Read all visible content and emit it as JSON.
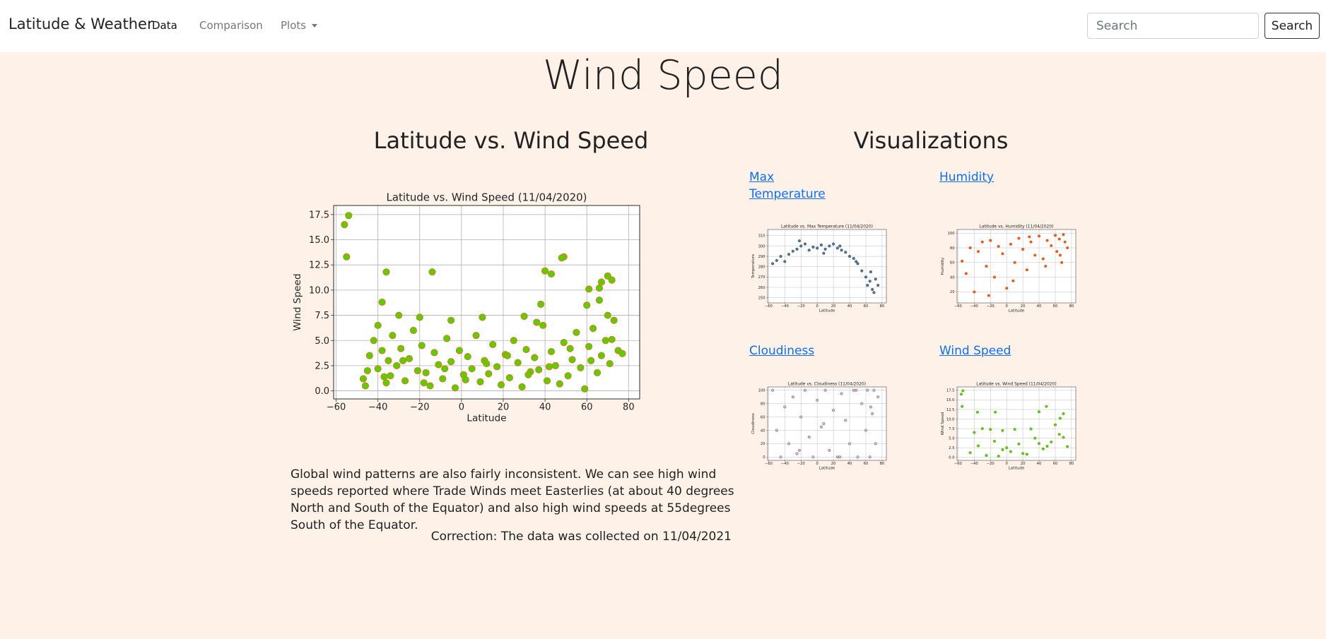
{
  "navbar": {
    "brand": "Latitude & Weather",
    "links": [
      "Data",
      "Comparison",
      "Plots"
    ],
    "search_placeholder": "Search",
    "search_button": "Search"
  },
  "page_title": "Wind Speed",
  "left": {
    "heading": "Latitude vs. Wind Speed",
    "chart_data": {
      "type": "scatter",
      "title": "Latitude vs. Wind Speed (11/04/2020)",
      "xlabel": "Latitude",
      "ylabel": "Wind Speed",
      "color": "#58d000",
      "edge_color": "#e8751a",
      "grid": true,
      "xlim": [
        -61.2,
        85.3
      ],
      "ylim": [
        -0.8,
        18.4
      ],
      "xticks": [
        {
          "value": -60,
          "label": "−60"
        },
        {
          "value": -40,
          "label": "−40"
        },
        {
          "value": -20,
          "label": "−20"
        },
        0,
        20,
        40,
        60,
        80
      ],
      "yticks": [
        {
          "value": 0,
          "label": "0.0"
        },
        2.5,
        {
          "value": 5,
          "label": "5.0"
        },
        7.5,
        {
          "value": 10,
          "label": "10.0"
        },
        12.5,
        {
          "value": 15,
          "label": "15.0"
        },
        17.5
      ],
      "x": [
        -56,
        -54,
        -55,
        -36,
        -14,
        49,
        48,
        40,
        43,
        70,
        72,
        67,
        66,
        61,
        -38,
        38,
        60,
        66,
        70,
        -40,
        -30,
        -20,
        -5,
        10,
        30,
        36,
        -47,
        -46,
        -44,
        -42,
        -40,
        -38,
        -36,
        -35,
        -34,
        -33,
        -31,
        -29,
        -27,
        -25,
        -23,
        -21,
        -19,
        -17,
        -15,
        -13,
        -11,
        -9,
        -7,
        -5,
        -3,
        -1,
        1,
        3,
        5,
        7,
        9,
        11,
        13,
        15,
        17,
        19,
        21,
        23,
        25,
        27,
        29,
        31,
        33,
        35,
        37,
        39,
        41,
        43,
        45,
        47,
        49,
        51,
        53,
        55,
        57,
        59,
        61,
        63,
        65,
        67,
        69,
        71,
        73,
        75,
        77,
        -45,
        -37,
        -28,
        -18,
        -8,
        2,
        12,
        22,
        32,
        42,
        52,
        62,
        72
      ],
      "values": [
        16.5,
        17.4,
        13.3,
        11.8,
        11.8,
        13.3,
        13.2,
        11.9,
        11.6,
        11.4,
        11,
        10.8,
        10.2,
        10.1,
        8.8,
        8.6,
        8.5,
        9,
        7.5,
        6.5,
        7.5,
        7.3,
        7,
        7.3,
        7.4,
        6.8,
        1.2,
        0.5,
        3.5,
        5,
        2.2,
        4,
        0.8,
        3,
        1.5,
        5.5,
        2.5,
        4.2,
        1,
        3.2,
        6,
        2,
        4.5,
        1.8,
        0.5,
        3.8,
        2.6,
        1.2,
        5.2,
        2.9,
        0.3,
        4,
        1.6,
        3.4,
        2.2,
        5.5,
        0.9,
        3,
        1.7,
        4.6,
        2.4,
        0.6,
        3.6,
        1.3,
        5,
        2.8,
        0.4,
        4.1,
        1.9,
        3.3,
        2.1,
        6.5,
        1,
        3.9,
        2.5,
        0.7,
        4.8,
        1.5,
        3.1,
        5.8,
        2.3,
        0.2,
        4.4,
        6.2,
        1.8,
        3.5,
        5,
        2.7,
        7,
        4,
        3.7,
        2,
        1.4,
        3,
        0.8,
        2.2,
        1.1,
        2.7,
        3.5,
        1.6,
        2.4,
        4.2,
        3,
        5.1
      ]
    },
    "description": "Global wind patterns are also fairly inconsistent. We can see high wind speeds reported where Trade Winds meet Easterlies (at about 40 degrees North and South of the Equator) and also high wind speeds at 55degrees South of the Equator.",
    "correction": "Correction: The data was collected on 11/04/2021"
  },
  "right": {
    "heading": "Visualizations",
    "items": [
      {
        "label": "Max Temperature",
        "chart_data": {
          "type": "scatter",
          "title": "Latitude vs. Max Temperature (11/04/2020)",
          "xlabel": "Latitude",
          "ylabel": "Temperature",
          "color": "#4a80a8",
          "edge_color": "#1a1a1a",
          "grid": true,
          "xlim": [
            -61.2,
            85.3
          ],
          "ylim": [
            245,
            316
          ],
          "xticks": [
            {
              "value": -60,
              "label": "−60"
            },
            {
              "value": -40,
              "label": "−40"
            },
            {
              "value": -20,
              "label": "−20"
            },
            0,
            20,
            40,
            60,
            80
          ],
          "yticks": [
            250,
            260,
            270,
            280,
            290,
            300,
            310
          ],
          "x": [
            -55,
            -50,
            -45,
            -40,
            -35,
            -30,
            -25,
            -20,
            -15,
            -10,
            -5,
            0,
            5,
            10,
            15,
            20,
            25,
            30,
            35,
            40,
            45,
            50,
            55,
            60,
            62,
            65,
            68,
            70,
            72,
            75,
            -22,
            8,
            28,
            48,
            66
          ],
          "values": [
            283,
            286,
            290,
            285,
            292,
            295,
            297,
            300,
            302,
            296,
            299,
            298,
            301,
            297,
            300,
            302,
            298,
            296,
            294,
            290,
            288,
            283,
            276,
            270,
            262,
            266,
            258,
            255,
            268,
            262,
            305,
            293,
            300,
            285,
            275
          ]
        }
      },
      {
        "label": "Humidity",
        "chart_data": {
          "type": "scatter",
          "title": "Latitude vs. Humidity (11/04/2020)",
          "xlabel": "Latitude",
          "ylabel": "Humidity",
          "color": "#ff5a0a",
          "edge_color": "#c43c00",
          "grid": true,
          "xlim": [
            -61.2,
            85.3
          ],
          "ylim": [
            5,
            105
          ],
          "xticks": [
            {
              "value": -60,
              "label": "−60"
            },
            {
              "value": -40,
              "label": "−40"
            },
            {
              "value": -20,
              "label": "−20"
            },
            0,
            20,
            40,
            60,
            80
          ],
          "yticks": [
            20,
            40,
            60,
            80,
            100
          ],
          "x": [
            -55,
            -50,
            -45,
            -40,
            -35,
            -30,
            -25,
            -20,
            -15,
            -10,
            -5,
            0,
            5,
            10,
            15,
            20,
            25,
            30,
            35,
            40,
            45,
            50,
            55,
            60,
            62,
            65,
            68,
            70,
            72,
            75,
            -22,
            8,
            28,
            48,
            66
          ],
          "values": [
            62,
            45,
            80,
            20,
            75,
            88,
            55,
            90,
            40,
            82,
            72,
            25,
            85,
            60,
            93,
            78,
            50,
            88,
            70,
            96,
            65,
            90,
            83,
            97,
            75,
            92,
            60,
            98,
            88,
            80,
            15,
            35,
            95,
            55,
            70
          ]
        }
      },
      {
        "label": "Cloudiness",
        "chart_data": {
          "type": "scatter",
          "title": "Latitude vs. Cloudiness (11/04/2020)",
          "xlabel": "Latitude",
          "ylabel": "Cloudiness",
          "color": "#d9b6c2",
          "edge_color": "#5a3a46",
          "grid": true,
          "xlim": [
            -61.2,
            85.3
          ],
          "ylim": [
            -5,
            105
          ],
          "xticks": [
            {
              "value": -60,
              "label": "−60"
            },
            {
              "value": -40,
              "label": "−40"
            },
            {
              "value": -20,
              "label": "−20"
            },
            0,
            20,
            40,
            60,
            80
          ],
          "yticks": [
            0,
            20,
            40,
            60,
            80,
            100
          ],
          "x": [
            -55,
            -50,
            -45,
            -40,
            -35,
            -30,
            -25,
            -20,
            -15,
            -10,
            -5,
            0,
            5,
            10,
            15,
            20,
            25,
            30,
            35,
            40,
            45,
            50,
            55,
            60,
            62,
            65,
            68,
            70,
            72,
            75,
            -22,
            8,
            28,
            48,
            66
          ],
          "values": [
            100,
            40,
            0,
            75,
            20,
            90,
            5,
            60,
            100,
            30,
            0,
            85,
            45,
            100,
            10,
            70,
            0,
            95,
            55,
            20,
            100,
            0,
            80,
            40,
            100,
            0,
            65,
            100,
            20,
            90,
            10,
            50,
            0,
            100,
            75
          ]
        }
      },
      {
        "label": "Wind Speed",
        "chart_data": {
          "type": "scatter",
          "title": "Latitude vs. Wind Speed (11/04/2020)",
          "xlabel": "Latitude",
          "ylabel": "Wind Speed",
          "color": "#5fd000",
          "edge_color": "#3d9000",
          "grid": true,
          "xlim": [
            -61.2,
            85.3
          ],
          "ylim": [
            -0.8,
            18.4
          ],
          "xticks": [
            {
              "value": -60,
              "label": "−60"
            },
            {
              "value": -40,
              "label": "−40"
            },
            {
              "value": -20,
              "label": "−20"
            },
            0,
            20,
            40,
            60,
            80
          ],
          "yticks": [
            {
              "value": 0,
              "label": "0.0"
            },
            2.5,
            {
              "value": 5,
              "label": "5.0"
            },
            7.5,
            {
              "value": 10,
              "label": "10.0"
            },
            12.5,
            {
              "value": 15,
              "label": "15.0"
            },
            17.5
          ],
          "x": [
            -56,
            -54,
            -55,
            -36,
            -14,
            49,
            40,
            70,
            66,
            -40,
            -30,
            -20,
            -5,
            10,
            30,
            -45,
            -35,
            -25,
            -15,
            -5,
            5,
            15,
            25,
            35,
            45,
            55,
            65,
            75,
            0,
            20,
            40,
            60,
            -10,
            50,
            70
          ],
          "values": [
            16.5,
            17.4,
            13.3,
            11.8,
            11.8,
            13.3,
            11.9,
            11.4,
            10.2,
            6.5,
            7.5,
            7.3,
            7,
            7.3,
            7.4,
            1.2,
            3,
            0.5,
            4.2,
            2,
            1.5,
            3.5,
            0.8,
            5,
            2.2,
            4,
            6,
            2.8,
            2.5,
            1,
            3.6,
            8.5,
            0.3,
            2.9,
            5.2
          ]
        }
      }
    ]
  }
}
